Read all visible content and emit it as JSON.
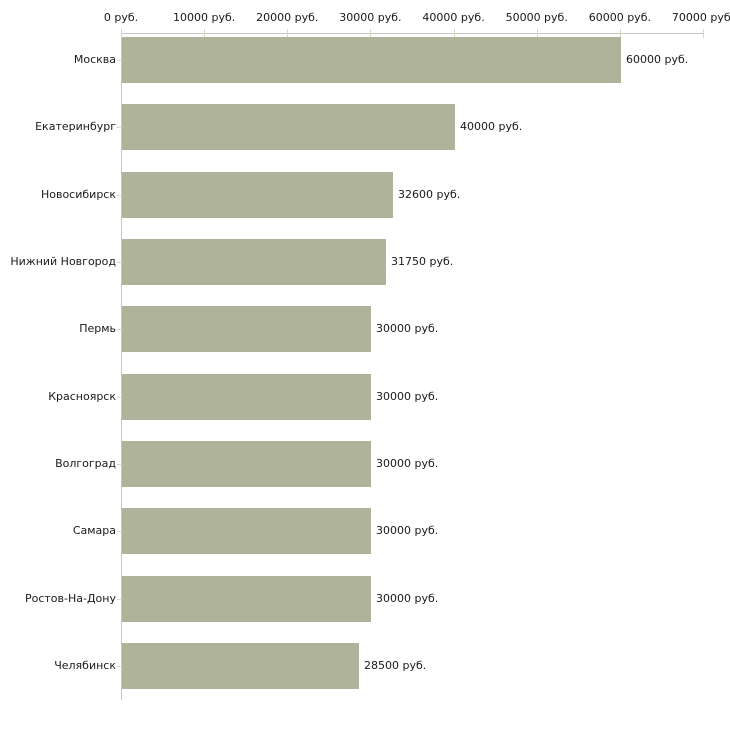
{
  "chart_data": {
    "type": "bar",
    "orientation": "horizontal",
    "title": "",
    "xlabel": "",
    "ylabel": "",
    "categories": [
      "Москва",
      "Екатеринбург",
      "Новосибирск",
      "Нижний Новгород",
      "Пермь",
      "Красноярск",
      "Волгоград",
      "Самара",
      "Ростов-На-Дону",
      "Челябинск"
    ],
    "values": [
      60000,
      40000,
      32600,
      31750,
      30000,
      30000,
      30000,
      30000,
      30000,
      28500
    ],
    "value_labels": [
      "60000 руб.",
      "40000 руб.",
      "32600 руб.",
      "31750 руб.",
      "30000 руб.",
      "30000 руб.",
      "30000 руб.",
      "30000 руб.",
      "30000 руб.",
      "28500 руб."
    ],
    "x_tick_values": [
      0,
      10000,
      20000,
      30000,
      40000,
      50000,
      60000,
      70000
    ],
    "x_tick_labels": [
      "0 руб.",
      "10000 руб.",
      "20000 руб.",
      "30000 руб.",
      "40000 руб.",
      "50000 руб.",
      "60000 руб.",
      "70000 руб."
    ],
    "xlim": [
      0,
      70000
    ],
    "legend": null,
    "grid": false,
    "unit": "руб.",
    "colors": {
      "bar": "#aeb399",
      "axis_line": "#c6c6c6",
      "tick": "#d5d9bd",
      "text": "#1a1a1a",
      "background": "#ffffff"
    }
  }
}
